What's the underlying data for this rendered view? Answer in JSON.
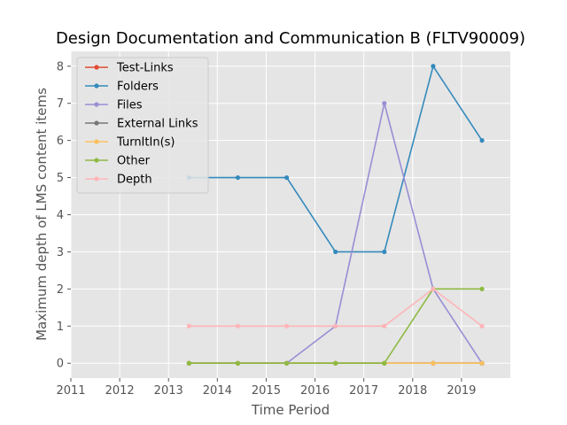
{
  "chart_data": {
    "type": "line",
    "title": "Design Documentation and Communication B (FLTV90009)",
    "xlabel": "Time Period",
    "ylabel": "Maximum depth of LMS content items",
    "xlim": [
      2011,
      2020
    ],
    "ylim": [
      -0.4,
      8.4
    ],
    "x_ticks": [
      "2011",
      "2012",
      "2013",
      "2014",
      "2015",
      "2016",
      "2017",
      "2018",
      "2019"
    ],
    "y_ticks": [
      "0",
      "1",
      "2",
      "3",
      "4",
      "5",
      "6",
      "7",
      "8"
    ],
    "grid": true,
    "legend_position": "upper-left",
    "x": [
      2013.42,
      2014.42,
      2015.42,
      2016.42,
      2017.42,
      2018.42,
      2019.42
    ],
    "series": [
      {
        "name": "Test-Links",
        "color": "#e24a33",
        "values": [
          0,
          0,
          0,
          0,
          0,
          0,
          0
        ]
      },
      {
        "name": "Folders",
        "color": "#348abd",
        "values": [
          5,
          5,
          5,
          3,
          3,
          8,
          6
        ]
      },
      {
        "name": "Files",
        "color": "#988ed5",
        "values": [
          0,
          0,
          0,
          1,
          7,
          2,
          0
        ]
      },
      {
        "name": "External Links",
        "color": "#777777",
        "values": [
          0,
          0,
          0,
          0,
          0,
          0,
          0
        ]
      },
      {
        "name": "TurnItIn(s)",
        "color": "#fbc15e",
        "values": [
          0,
          0,
          0,
          0,
          0,
          0,
          0
        ]
      },
      {
        "name": "Other",
        "color": "#8eba42",
        "values": [
          0,
          0,
          0,
          0,
          0,
          2,
          2
        ]
      },
      {
        "name": "Depth",
        "color": "#ffb5b8",
        "values": [
          1,
          1,
          1,
          1,
          1,
          2,
          1
        ]
      }
    ]
  }
}
